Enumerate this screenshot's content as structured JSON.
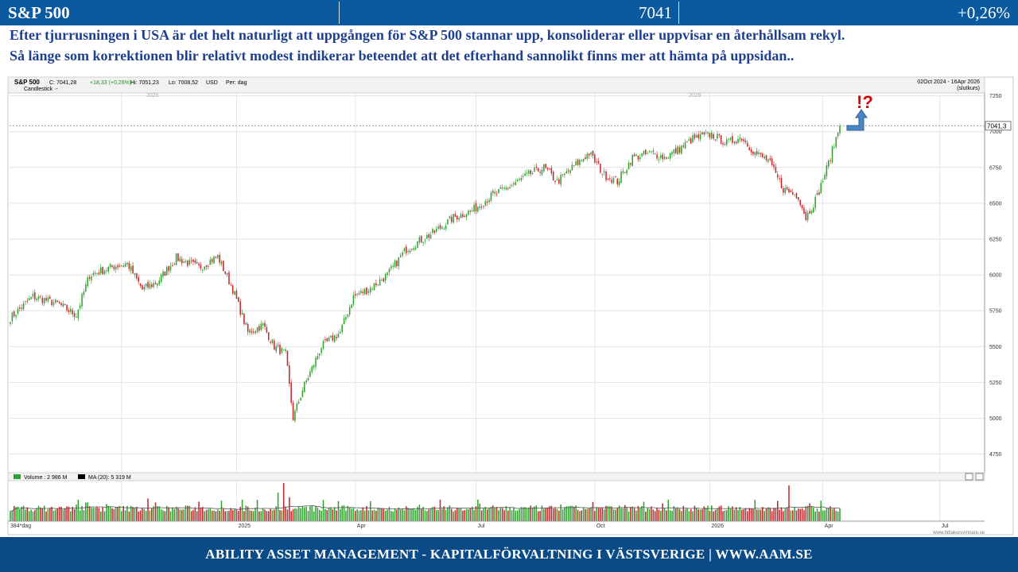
{
  "header": {
    "title": "S&P 500",
    "price": "7041",
    "change": "+0,26%"
  },
  "commentary": {
    "line1": "Efter tjurrusningen i USA är det helt naturligt att uppgången för S&P 500 stannar upp, konsoliderar eller uppvisar en återhållsam rekyl.",
    "line2": "Så länge som korrektionen blir relativt modest indikerar beteendet att det efterhand sannolikt finns mer att hämta på uppsidan.."
  },
  "footer": {
    "text": "ABILITY ASSET MANAGEMENT -  KAPITALFÖRVALTNING I VÄSTSVERIGE   |   WWW.AAM.SE"
  },
  "chart_data": {
    "type": "candlestick",
    "title": "S&P 500",
    "info": {
      "close": "C: 7041,28",
      "change": "+18,33 (+0,26%)",
      "high": "Hi: 7051,23",
      "low": "Lo: 7008,52",
      "currency": "USD",
      "period": "Per: dag",
      "style": "Candlestick ·-",
      "range": "02Oct 2024 - 16Apr 2026",
      "range_note": "(slutkurs)"
    },
    "last_price_label": "7041,3",
    "annotation": "!?",
    "ylim": [
      4620,
      7270
    ],
    "y_ticks": [
      4750,
      5000,
      5250,
      5500,
      5750,
      6000,
      6250,
      6500,
      6750,
      7000,
      7250
    ],
    "x_tick_labels": [
      "384*dag",
      "2025",
      "Apr",
      "Jul",
      "Oct",
      "2026",
      "Apr",
      "Jul"
    ],
    "year_markers": [
      "2025",
      "2026"
    ],
    "price_anchors": [
      [
        0,
        5700
      ],
      [
        12,
        5850
      ],
      [
        25,
        5800
      ],
      [
        35,
        5720
      ],
      [
        42,
        6000
      ],
      [
        55,
        6060
      ],
      [
        62,
        6080
      ],
      [
        70,
        5900
      ],
      [
        78,
        5950
      ],
      [
        88,
        6120
      ],
      [
        100,
        6050
      ],
      [
        110,
        6130
      ],
      [
        118,
        5900
      ],
      [
        126,
        5600
      ],
      [
        134,
        5650
      ],
      [
        140,
        5500
      ],
      [
        146,
        5450
      ],
      [
        150,
        5000
      ],
      [
        155,
        5200
      ],
      [
        165,
        5500
      ],
      [
        175,
        5600
      ],
      [
        182,
        5850
      ],
      [
        190,
        5900
      ],
      [
        200,
        6000
      ],
      [
        210,
        6180
      ],
      [
        225,
        6300
      ],
      [
        235,
        6400
      ],
      [
        245,
        6450
      ],
      [
        255,
        6550
      ],
      [
        265,
        6620
      ],
      [
        275,
        6700
      ],
      [
        283,
        6750
      ],
      [
        290,
        6650
      ],
      [
        300,
        6770
      ],
      [
        307,
        6850
      ],
      [
        315,
        6700
      ],
      [
        322,
        6650
      ],
      [
        330,
        6820
      ],
      [
        340,
        6850
      ],
      [
        347,
        6820
      ],
      [
        355,
        6880
      ],
      [
        362,
        6950
      ],
      [
        372,
        6980
      ],
      [
        380,
        6920
      ],
      [
        388,
        6960
      ],
      [
        395,
        6850
      ],
      [
        402,
        6800
      ],
      [
        410,
        6600
      ],
      [
        418,
        6550
      ],
      [
        422,
        6400
      ],
      [
        428,
        6550
      ],
      [
        434,
        6780
      ],
      [
        440,
        7041
      ]
    ],
    "volume": {
      "label": "Volume : 2 986 M",
      "ma_label": "MA (20): 5 319 M",
      "ma_value_m": 5319,
      "max_m": 16000,
      "spikes": [
        [
          36,
          9000
        ],
        [
          73,
          9500
        ],
        [
          123,
          9000
        ],
        [
          142,
          12000
        ],
        [
          145,
          16000
        ],
        [
          148,
          10000
        ],
        [
          248,
          9000
        ],
        [
          349,
          9000
        ],
        [
          413,
          15000
        ]
      ]
    }
  }
}
